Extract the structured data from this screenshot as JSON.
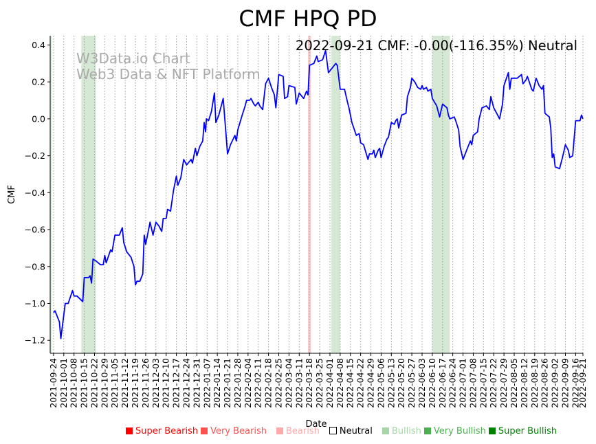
{
  "chart_data": {
    "type": "line",
    "title": "CMF HPQ PD",
    "xlabel": "Date",
    "ylabel": "CMF",
    "annotation": "2022-09-21 CMF: -0.00(-116.35%) Neutral",
    "watermark": [
      "W3Data.io Chart",
      "Web3 Data & NFT Platform"
    ],
    "x_unit": "days since 2021-09-24",
    "xlim": [
      -2.3,
      362
    ],
    "ylim": [
      -1.27,
      0.45
    ],
    "yticks": [
      0.4,
      0.2,
      0.0,
      -0.2,
      -0.4,
      -0.6,
      -0.8,
      -1.0,
      -1.2
    ],
    "ytick_labels": [
      "0.4",
      "0.2",
      "0.0",
      "−0.2",
      "−0.4",
      "−0.6",
      "−0.8",
      "−1.0",
      "−1.2"
    ],
    "xtick_days": [
      0,
      7,
      14,
      21,
      28,
      35,
      42,
      49,
      56,
      63,
      70,
      77,
      84,
      91,
      98,
      105,
      112,
      119,
      126,
      133,
      140,
      147,
      154,
      161,
      168,
      175,
      182,
      189,
      196,
      203,
      210,
      217,
      224,
      231,
      238,
      245,
      252,
      259,
      266,
      273,
      280,
      287,
      294,
      301,
      308,
      315,
      322,
      329,
      336,
      343,
      350,
      357,
      362
    ],
    "xtick_labels": [
      "2021-09-24",
      "2021-10-01",
      "2021-10-08",
      "2021-10-15",
      "2021-10-22",
      "2021-10-29",
      "2021-11-05",
      "2021-11-12",
      "2021-11-19",
      "2021-11-26",
      "2021-12-03",
      "2021-12-10",
      "2021-12-17",
      "2021-12-24",
      "2021-12-31",
      "2022-01-07",
      "2022-01-14",
      "2022-01-21",
      "2022-01-28",
      "2022-02-04",
      "2022-02-11",
      "2022-02-18",
      "2022-02-25",
      "2022-03-04",
      "2022-03-11",
      "2022-03-18",
      "2022-03-25",
      "2022-04-01",
      "2022-04-08",
      "2022-04-15",
      "2022-04-22",
      "2022-04-29",
      "2022-05-06",
      "2022-05-13",
      "2022-05-20",
      "2022-05-27",
      "2022-06-03",
      "2022-06-10",
      "2022-06-17",
      "2022-06-24",
      "2022-07-01",
      "2022-07-08",
      "2022-07-15",
      "2022-07-22",
      "2022-07-29",
      "2022-08-05",
      "2022-08-12",
      "2022-08-19",
      "2022-08-26",
      "2022-09-02",
      "2022-09-09",
      "2022-09-16",
      "2022-09-21"
    ],
    "shaded_regions": [
      {
        "from": -2.3,
        "to": -1.4,
        "signal": "Bullish",
        "color": "#d5e8d4"
      },
      {
        "from": 19,
        "to": 29,
        "signal": "Bullish",
        "color": "#d5e8d4"
      },
      {
        "from": 174,
        "to": 176,
        "signal": "Bearish",
        "color": "#f8cccc"
      },
      {
        "from": 190,
        "to": 196,
        "signal": "Bullish",
        "color": "#d5e8d4"
      },
      {
        "from": 259,
        "to": 271,
        "signal": "Bullish",
        "color": "#d5e8d4"
      }
    ],
    "series": [
      {
        "name": "CMF",
        "color": "#0000ff",
        "points": [
          [
            0,
            -1.05
          ],
          [
            1,
            -1.04
          ],
          [
            4,
            -1.1
          ],
          [
            5,
            -1.19
          ],
          [
            8,
            -1.0
          ],
          [
            10,
            -1.0
          ],
          [
            13,
            -0.93
          ],
          [
            14,
            -0.96
          ],
          [
            16,
            -0.96
          ],
          [
            20,
            -0.99
          ],
          [
            21,
            -0.86
          ],
          [
            24,
            -0.86
          ],
          [
            25,
            -0.85
          ],
          [
            26,
            -0.89
          ],
          [
            27,
            -0.76
          ],
          [
            29,
            -0.77
          ],
          [
            32,
            -0.79
          ],
          [
            34,
            -0.79
          ],
          [
            35,
            -0.74
          ],
          [
            36,
            -0.78
          ],
          [
            39,
            -0.71
          ],
          [
            40,
            -0.72
          ],
          [
            42,
            -0.63
          ],
          [
            45,
            -0.63
          ],
          [
            47,
            -0.59
          ],
          [
            48,
            -0.67
          ],
          [
            50,
            -0.72
          ],
          [
            53,
            -0.75
          ],
          [
            55,
            -0.8
          ],
          [
            56,
            -0.9
          ],
          [
            57,
            -0.88
          ],
          [
            59,
            -0.88
          ],
          [
            61,
            -0.84
          ],
          [
            62,
            -0.63
          ],
          [
            63,
            -0.68
          ],
          [
            66,
            -0.56
          ],
          [
            68,
            -0.63
          ],
          [
            70,
            -0.56
          ],
          [
            72,
            -0.58
          ],
          [
            74,
            -0.61
          ],
          [
            75,
            -0.54
          ],
          [
            77,
            -0.54
          ],
          [
            78,
            -0.49
          ],
          [
            80,
            -0.5
          ],
          [
            82,
            -0.39
          ],
          [
            84,
            -0.31
          ],
          [
            85,
            -0.36
          ],
          [
            87,
            -0.32
          ],
          [
            89,
            -0.22
          ],
          [
            91,
            -0.25
          ],
          [
            94,
            -0.22
          ],
          [
            95,
            -0.24
          ],
          [
            97,
            -0.16
          ],
          [
            98,
            -0.2
          ],
          [
            100,
            -0.15
          ],
          [
            102,
            -0.12
          ],
          [
            103,
            -0.02
          ],
          [
            104,
            -0.07
          ],
          [
            104.5,
            0.0
          ],
          [
            106,
            -0.01
          ],
          [
            108,
            0.04
          ],
          [
            110,
            0.14
          ],
          [
            111,
            -0.02
          ],
          [
            113,
            0.02
          ],
          [
            116,
            0.11
          ],
          [
            119,
            -0.19
          ],
          [
            121,
            -0.14
          ],
          [
            124,
            -0.09
          ],
          [
            125,
            -0.12
          ],
          [
            126,
            -0.06
          ],
          [
            129,
            0.02
          ],
          [
            131,
            0.07
          ],
          [
            132,
            0.1
          ],
          [
            134,
            0.1
          ],
          [
            135,
            0.11
          ],
          [
            137,
            0.08
          ],
          [
            138,
            0.07
          ],
          [
            140,
            0.09
          ],
          [
            141,
            0.07
          ],
          [
            143,
            0.05
          ],
          [
            145,
            0.19
          ],
          [
            147,
            0.22
          ],
          [
            149,
            0.17
          ],
          [
            151,
            0.13
          ],
          [
            152,
            0.06
          ],
          [
            154,
            0.24
          ],
          [
            157,
            0.23
          ],
          [
            158,
            0.11
          ],
          [
            160,
            0.12
          ],
          [
            161,
            0.18
          ],
          [
            165,
            0.17
          ],
          [
            166,
            0.08
          ],
          [
            168,
            0.14
          ],
          [
            170,
            0.12
          ],
          [
            171,
            0.11
          ],
          [
            173,
            0.15
          ],
          [
            174,
            0.13
          ],
          [
            175,
            0.29
          ],
          [
            178,
            0.3
          ],
          [
            180,
            0.34
          ],
          [
            181,
            0.31
          ],
          [
            184,
            0.32
          ],
          [
            186,
            0.37
          ],
          [
            188,
            0.25
          ],
          [
            191,
            0.28
          ],
          [
            193,
            0.3
          ],
          [
            194,
            0.29
          ],
          [
            196,
            0.16
          ],
          [
            199,
            0.16
          ],
          [
            201,
            0.09
          ],
          [
            202,
            0.06
          ],
          [
            204,
            -0.02
          ],
          [
            207,
            -0.09
          ],
          [
            209,
            -0.08
          ],
          [
            210,
            -0.13
          ],
          [
            212,
            -0.14
          ],
          [
            215,
            -0.22
          ],
          [
            216,
            -0.19
          ],
          [
            218,
            -0.19
          ],
          [
            219,
            -0.17
          ],
          [
            220,
            -0.21
          ],
          [
            222,
            -0.17
          ],
          [
            223,
            -0.16
          ],
          [
            224,
            -0.21
          ],
          [
            226,
            -0.15
          ],
          [
            228,
            -0.11
          ],
          [
            229,
            -0.1
          ],
          [
            231,
            -0.02
          ],
          [
            233,
            -0.03
          ],
          [
            234,
            -0.01
          ],
          [
            235,
            0.0
          ],
          [
            236,
            -0.05
          ],
          [
            238,
            0.02
          ],
          [
            241,
            0.03
          ],
          [
            242,
            0.12
          ],
          [
            244,
            0.17
          ],
          [
            245,
            0.22
          ],
          [
            247,
            0.2
          ],
          [
            249,
            0.17
          ],
          [
            251,
            0.16
          ],
          [
            252,
            0.18
          ],
          [
            253,
            0.16
          ],
          [
            255,
            0.17
          ],
          [
            256,
            0.15
          ],
          [
            258,
            0.16
          ],
          [
            259,
            0.11
          ],
          [
            262,
            0.07
          ],
          [
            264,
            0.01
          ],
          [
            266,
            0.08
          ],
          [
            269,
            0.06
          ],
          [
            270,
            0.02
          ],
          [
            271,
            0.0
          ],
          [
            274,
            0.01
          ],
          [
            275,
            -0.01
          ],
          [
            277,
            -0.06
          ],
          [
            278,
            -0.15
          ],
          [
            280,
            -0.22
          ],
          [
            282,
            -0.18
          ],
          [
            285,
            -0.12
          ],
          [
            286,
            -0.14
          ],
          [
            287,
            -0.09
          ],
          [
            290,
            -0.07
          ],
          [
            291,
            0.0
          ],
          [
            293,
            0.06
          ],
          [
            296,
            0.07
          ],
          [
            298,
            0.05
          ],
          [
            299,
            0.12
          ],
          [
            301,
            0.06
          ],
          [
            303,
            0.03
          ],
          [
            305,
            0.0
          ],
          [
            307,
            0.08
          ],
          [
            308,
            0.18
          ],
          [
            311,
            0.25
          ],
          [
            312,
            0.16
          ],
          [
            313,
            0.22
          ],
          [
            317,
            0.22
          ],
          [
            320,
            0.24
          ],
          [
            321,
            0.19
          ],
          [
            323,
            0.21
          ],
          [
            324,
            0.23
          ],
          [
            327,
            0.16
          ],
          [
            328,
            0.15
          ],
          [
            330,
            0.22
          ],
          [
            332,
            0.18
          ],
          [
            334,
            0.16
          ],
          [
            335,
            0.18
          ],
          [
            336,
            0.03
          ],
          [
            339,
            0.01
          ],
          [
            340,
            -0.05
          ],
          [
            341,
            -0.21
          ],
          [
            342,
            -0.19
          ],
          [
            343,
            -0.26
          ],
          [
            346,
            -0.27
          ],
          [
            348,
            -0.21
          ],
          [
            350,
            -0.14
          ],
          [
            352,
            -0.17
          ],
          [
            353,
            -0.21
          ],
          [
            355,
            -0.2
          ],
          [
            357,
            -0.01
          ],
          [
            360,
            -0.01
          ],
          [
            361,
            0.02
          ],
          [
            362,
            0.0
          ]
        ]
      }
    ]
  },
  "legend": [
    {
      "label": "Super Bearish",
      "color": "#ff0000",
      "text_color": "#ff0000"
    },
    {
      "label": "Very Bearish",
      "color": "#ff5050",
      "text_color": "#ff5050"
    },
    {
      "label": "Bearish",
      "color": "#ffaaaa",
      "text_color": "#ffaaaa"
    },
    {
      "label": "Neutral",
      "color": "none",
      "text_color": "#000000"
    },
    {
      "label": "Bullish",
      "color": "#a8d5a8",
      "text_color": "#a8d5a8"
    },
    {
      "label": "Very Bullish",
      "color": "#4caf50",
      "text_color": "#4caf50"
    },
    {
      "label": "Super Bullish",
      "color": "#008000",
      "text_color": "#008000"
    }
  ]
}
